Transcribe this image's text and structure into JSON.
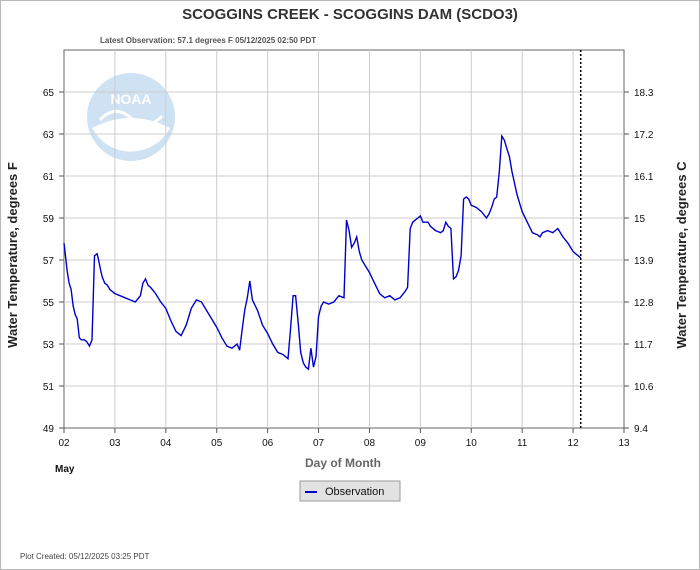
{
  "chart_data": {
    "type": "line",
    "title": "SCOGGINS CREEK - SCOGGINS DAM  (SCDO3)",
    "subtitle": "Latest Observation: 57.1 degrees F  05/12/2025 02:50 PDT",
    "ylabel": "Water Temperature, degrees F",
    "ylabel_right": "Water Temperature, degrees C",
    "xlabel": "Day of Month",
    "month_label": "May",
    "footer": "Plot Created: 05/12/2025 03:25 PDT",
    "xlim": [
      2,
      13
    ],
    "ylim": [
      49,
      67
    ],
    "x_ticks": [
      "02",
      "03",
      "04",
      "05",
      "06",
      "07",
      "08",
      "09",
      "10",
      "11",
      "12",
      "13"
    ],
    "y_ticks": [
      "49",
      "51",
      "53",
      "55",
      "57",
      "59",
      "61",
      "63",
      "65"
    ],
    "y2_ticks": [
      "9.4",
      "10.6",
      "11.7",
      "12.8",
      "13.9",
      "15",
      "16.1",
      "17.2",
      "18.3"
    ],
    "latest_marker_x": 12.15,
    "grid": true,
    "legend_position": "bottom-center",
    "logo_text": "NOAA",
    "series": [
      {
        "name": "Observation",
        "color": "#0000cc",
        "x": [
          2.0,
          2.02,
          2.06,
          2.1,
          2.14,
          2.18,
          2.22,
          2.26,
          2.3,
          2.34,
          2.4,
          2.45,
          2.5,
          2.55,
          2.6,
          2.65,
          2.68,
          2.72,
          2.75,
          2.8,
          2.85,
          2.9,
          3.0,
          3.1,
          3.2,
          3.3,
          3.4,
          3.5,
          3.55,
          3.6,
          3.65,
          3.7,
          3.8,
          3.9,
          4.0,
          4.1,
          4.2,
          4.3,
          4.4,
          4.5,
          4.6,
          4.7,
          4.8,
          4.9,
          5.0,
          5.1,
          5.2,
          5.3,
          5.4,
          5.45,
          5.5,
          5.55,
          5.6,
          5.65,
          5.7,
          5.8,
          5.9,
          6.0,
          6.1,
          6.2,
          6.3,
          6.4,
          6.45,
          6.5,
          6.55,
          6.6,
          6.65,
          6.7,
          6.75,
          6.8,
          6.85,
          6.9,
          6.95,
          7.0,
          7.05,
          7.1,
          7.2,
          7.3,
          7.4,
          7.5,
          7.55,
          7.6,
          7.65,
          7.7,
          7.75,
          7.8,
          7.85,
          7.9,
          8.0,
          8.1,
          8.2,
          8.3,
          8.4,
          8.5,
          8.6,
          8.7,
          8.75,
          8.8,
          8.85,
          8.9,
          8.95,
          9.0,
          9.05,
          9.1,
          9.15,
          9.2,
          9.3,
          9.4,
          9.45,
          9.5,
          9.55,
          9.6,
          9.65,
          9.7,
          9.75,
          9.8,
          9.85,
          9.9,
          9.95,
          10.0,
          10.1,
          10.2,
          10.3,
          10.35,
          10.4,
          10.45,
          10.5,
          10.55,
          10.6,
          10.65,
          10.7,
          10.75,
          10.8,
          10.9,
          11.0,
          11.1,
          11.2,
          11.3,
          11.35,
          11.4,
          11.5,
          11.6,
          11.7,
          11.8,
          11.9,
          12.0,
          12.05,
          12.1,
          12.15
        ],
        "y": [
          57.8,
          57.4,
          56.5,
          55.9,
          55.6,
          54.8,
          54.4,
          54.2,
          53.3,
          53.2,
          53.2,
          53.1,
          52.9,
          53.2,
          57.2,
          57.3,
          57.0,
          56.5,
          56.2,
          55.9,
          55.8,
          55.6,
          55.4,
          55.3,
          55.2,
          55.1,
          55.0,
          55.3,
          55.9,
          56.1,
          55.8,
          55.7,
          55.4,
          55.0,
          54.7,
          54.1,
          53.6,
          53.4,
          53.9,
          54.7,
          55.1,
          55.0,
          54.6,
          54.2,
          53.8,
          53.3,
          52.9,
          52.8,
          53.0,
          52.7,
          53.7,
          54.6,
          55.2,
          56.0,
          55.1,
          54.6,
          53.9,
          53.5,
          53.0,
          52.6,
          52.5,
          52.3,
          53.7,
          55.3,
          55.3,
          54.0,
          52.6,
          52.1,
          51.9,
          51.8,
          52.8,
          51.9,
          52.4,
          54.3,
          54.8,
          55.0,
          54.9,
          55.0,
          55.3,
          55.2,
          58.9,
          58.4,
          57.6,
          57.8,
          58.1,
          57.4,
          57.0,
          56.8,
          56.4,
          55.9,
          55.4,
          55.2,
          55.3,
          55.1,
          55.2,
          55.5,
          55.7,
          58.5,
          58.8,
          58.9,
          59.0,
          59.1,
          58.8,
          58.8,
          58.8,
          58.6,
          58.4,
          58.3,
          58.4,
          58.8,
          58.6,
          58.5,
          56.1,
          56.2,
          56.5,
          57.2,
          59.9,
          60.0,
          59.9,
          59.6,
          59.5,
          59.3,
          59.0,
          59.2,
          59.5,
          59.9,
          60.0,
          61.2,
          62.9,
          62.7,
          62.3,
          61.9,
          61.2,
          60.1,
          59.3,
          58.8,
          58.3,
          58.2,
          58.1,
          58.3,
          58.4,
          58.3,
          58.5,
          58.1,
          57.8,
          57.4,
          57.3,
          57.2,
          57.1
        ]
      }
    ]
  }
}
